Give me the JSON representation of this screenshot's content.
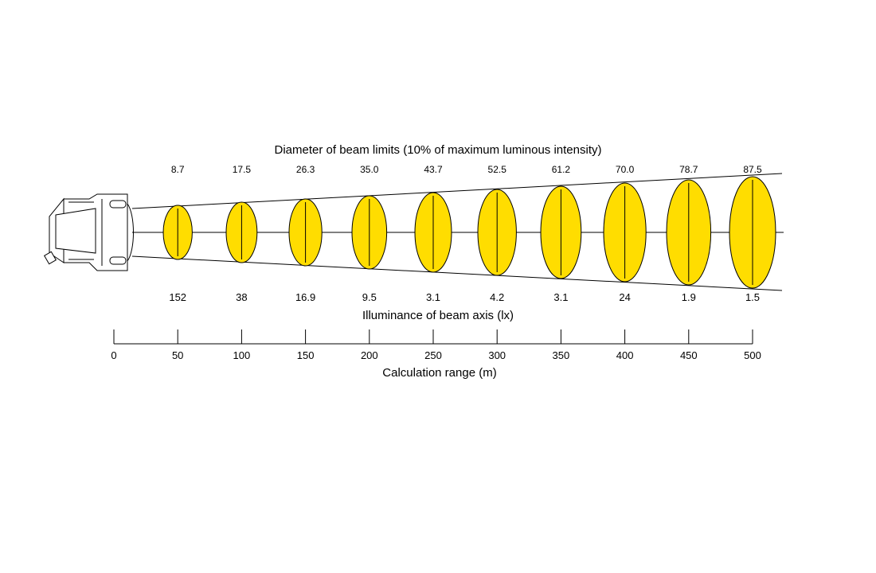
{
  "title_top": "Diameter of beam limits (10% of maximum luminous intensity)",
  "title_mid": "Illuminance of beam axis (lx)",
  "xlabel": "Calculation range (m)",
  "colors": {
    "beam_fill": "#FFDD00",
    "line": "#000000"
  },
  "chart_data": {
    "type": "beam-diagram",
    "x_unit": "m",
    "xlim": [
      0,
      500
    ],
    "x_ticks": [
      0,
      50,
      100,
      150,
      200,
      250,
      300,
      350,
      400,
      450,
      500
    ],
    "distances": [
      50,
      100,
      150,
      200,
      250,
      300,
      350,
      400,
      450,
      500
    ],
    "diameter_labels": [
      "8.7",
      "17.5",
      "26.3",
      "35.0",
      "43.7",
      "52.5",
      "61.2",
      "70.0",
      "78.7",
      "87.5"
    ],
    "illuminance_labels": [
      "152",
      "38",
      "16.9",
      "9.5",
      "3.1",
      "4.2",
      "3.1",
      "24",
      "1.9",
      "1.5"
    ]
  }
}
